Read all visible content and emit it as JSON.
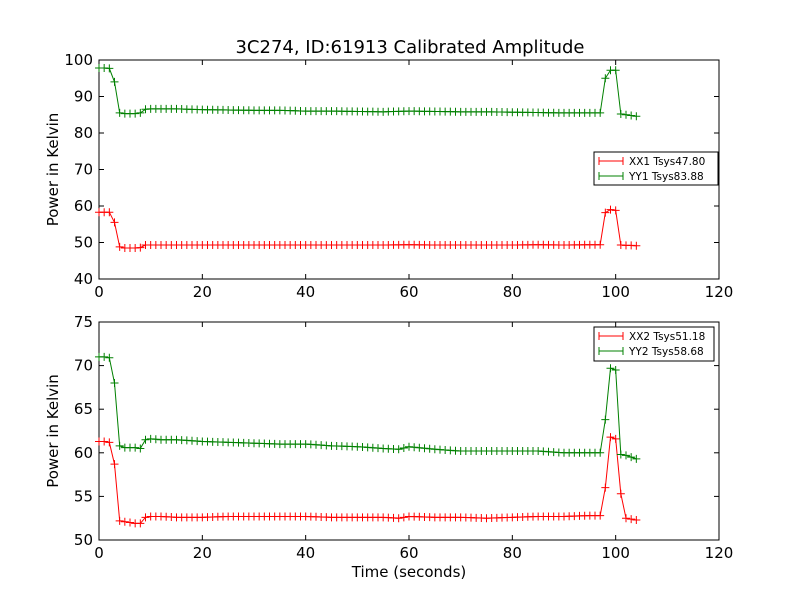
{
  "figure_title": "3C274, ID:61913 Calibrated Amplitude",
  "chart_data": [
    {
      "type": "line",
      "title": "3C274, ID:61913 Calibrated Amplitude",
      "xlabel": "",
      "ylabel": "Power in Kelvin",
      "xlim": [
        0,
        120
      ],
      "ylim": [
        40,
        100
      ],
      "xticks": [
        0,
        20,
        40,
        60,
        80,
        100,
        120
      ],
      "yticks": [
        40,
        50,
        60,
        70,
        80,
        90,
        100
      ],
      "marker": "+",
      "grid": false,
      "legend_position": "right",
      "series": [
        {
          "name": "XX1 Tsys47.80",
          "color": "#ff0000",
          "x": [
            0,
            1,
            2,
            3,
            4,
            5,
            6,
            7,
            8,
            9,
            10,
            12,
            15,
            20,
            25,
            30,
            35,
            40,
            45,
            50,
            55,
            60,
            65,
            70,
            75,
            80,
            85,
            90,
            95,
            97,
            98,
            99,
            100,
            101,
            102,
            103,
            104
          ],
          "values": [
            58.3,
            58.3,
            58.3,
            55.5,
            48.8,
            48.5,
            48.5,
            48.5,
            48.6,
            49.3,
            49.3,
            49.3,
            49.3,
            49.3,
            49.3,
            49.3,
            49.3,
            49.3,
            49.3,
            49.3,
            49.3,
            49.4,
            49.3,
            49.3,
            49.3,
            49.3,
            49.4,
            49.3,
            49.4,
            49.4,
            58.2,
            59.0,
            58.8,
            49.3,
            49.2,
            49.2,
            49.1
          ]
        },
        {
          "name": "YY1 Tsys83.88",
          "color": "#008000",
          "x": [
            0,
            1,
            2,
            3,
            4,
            5,
            6,
            7,
            8,
            9,
            10,
            12,
            15,
            20,
            25,
            30,
            35,
            40,
            45,
            50,
            55,
            60,
            65,
            70,
            75,
            80,
            85,
            90,
            95,
            97,
            98,
            99,
            100,
            101,
            102,
            103,
            104
          ],
          "values": [
            97.8,
            97.8,
            97.7,
            94.0,
            85.5,
            85.3,
            85.3,
            85.3,
            85.5,
            86.5,
            86.6,
            86.6,
            86.6,
            86.4,
            86.3,
            86.2,
            86.2,
            86.0,
            86.0,
            85.9,
            85.8,
            86.0,
            85.9,
            85.8,
            85.8,
            85.7,
            85.6,
            85.5,
            85.5,
            85.5,
            95.0,
            97.2,
            97.2,
            85.2,
            85.0,
            84.8,
            84.6
          ]
        }
      ],
      "legend": [
        "XX1 Tsys47.80",
        "YY1 Tsys83.88"
      ]
    },
    {
      "type": "line",
      "title": "",
      "xlabel": "Time (seconds)",
      "ylabel": "Power in Kelvin",
      "xlim": [
        0,
        120
      ],
      "ylim": [
        50,
        75
      ],
      "xticks": [
        0,
        20,
        40,
        60,
        80,
        100,
        120
      ],
      "yticks": [
        50,
        55,
        60,
        65,
        70,
        75
      ],
      "marker": "+",
      "grid": false,
      "legend_position": "top-right",
      "series": [
        {
          "name": "XX2 Tsys51.18",
          "color": "#ff0000",
          "x": [
            0,
            1,
            2,
            3,
            4,
            5,
            6,
            7,
            8,
            9,
            10,
            12,
            15,
            20,
            25,
            30,
            35,
            40,
            45,
            50,
            55,
            58,
            60,
            65,
            70,
            75,
            80,
            85,
            90,
            95,
            97,
            98,
            99,
            100,
            101,
            102,
            103,
            104
          ],
          "values": [
            61.3,
            61.3,
            61.2,
            58.7,
            52.2,
            52.1,
            52.0,
            51.9,
            51.9,
            52.6,
            52.7,
            52.7,
            52.6,
            52.6,
            52.7,
            52.7,
            52.7,
            52.7,
            52.6,
            52.6,
            52.6,
            52.5,
            52.7,
            52.6,
            52.6,
            52.5,
            52.6,
            52.7,
            52.7,
            52.8,
            52.8,
            56.0,
            61.8,
            61.6,
            55.3,
            52.5,
            52.4,
            52.3
          ]
        },
        {
          "name": "YY2 Tsys58.68",
          "color": "#008000",
          "x": [
            0,
            1,
            2,
            3,
            4,
            5,
            6,
            7,
            8,
            9,
            10,
            12,
            15,
            20,
            25,
            30,
            35,
            40,
            45,
            50,
            55,
            58,
            60,
            65,
            70,
            75,
            80,
            85,
            90,
            95,
            97,
            98,
            99,
            100,
            101,
            102,
            103,
            104
          ],
          "values": [
            71.0,
            71.0,
            70.9,
            68.0,
            60.8,
            60.6,
            60.6,
            60.6,
            60.5,
            61.5,
            61.6,
            61.5,
            61.5,
            61.3,
            61.2,
            61.1,
            61.0,
            61.0,
            60.8,
            60.7,
            60.5,
            60.4,
            60.7,
            60.4,
            60.2,
            60.2,
            60.2,
            60.2,
            60.0,
            60.0,
            60.0,
            63.8,
            69.7,
            69.5,
            59.8,
            59.7,
            59.5,
            59.3
          ]
        }
      ],
      "legend": [
        "XX2 Tsys51.18",
        "YY2 Tsys58.68"
      ]
    }
  ]
}
